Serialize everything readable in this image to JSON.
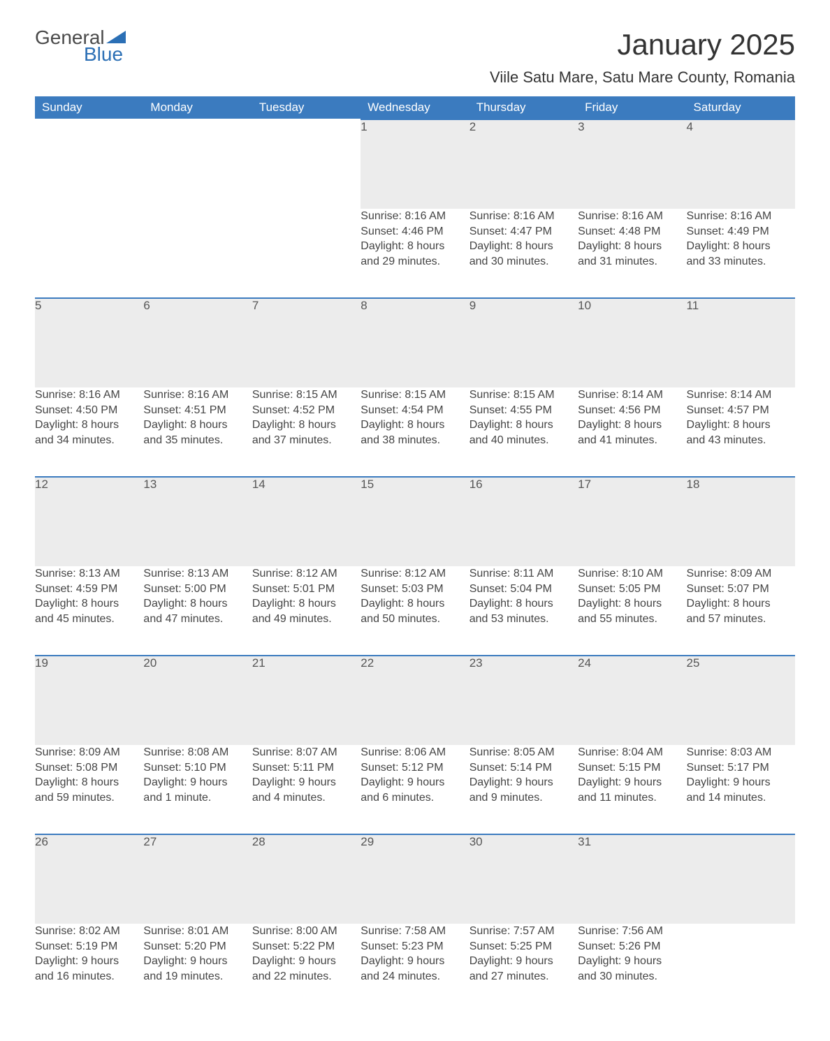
{
  "brand": {
    "word1": "General",
    "word2": "Blue"
  },
  "title": "January 2025",
  "subtitle": "Viile Satu Mare, Satu Mare County, Romania",
  "colors": {
    "header_bg": "#3b7bbf",
    "header_text": "#ffffff",
    "daynum_bg": "#ececec",
    "row_border": "#3b7bbf",
    "body_text": "#444444",
    "brand_blue": "#2b6fb5",
    "brand_gray": "#4a4a4a",
    "page_bg": "#ffffff"
  },
  "typography": {
    "title_fontsize": 42,
    "subtitle_fontsize": 22,
    "header_fontsize": 17,
    "daynum_fontsize": 17,
    "cell_fontsize": 16,
    "logo_fontsize": 28
  },
  "layout": {
    "columns": 7,
    "body_rows": 5
  },
  "headers": [
    "Sunday",
    "Monday",
    "Tuesday",
    "Wednesday",
    "Thursday",
    "Friday",
    "Saturday"
  ],
  "weeks": [
    [
      null,
      null,
      null,
      {
        "day": "1",
        "sunrise": "8:16 AM",
        "sunset": "4:46 PM",
        "daylight1": "8 hours",
        "daylight2": "and 29 minutes."
      },
      {
        "day": "2",
        "sunrise": "8:16 AM",
        "sunset": "4:47 PM",
        "daylight1": "8 hours",
        "daylight2": "and 30 minutes."
      },
      {
        "day": "3",
        "sunrise": "8:16 AM",
        "sunset": "4:48 PM",
        "daylight1": "8 hours",
        "daylight2": "and 31 minutes."
      },
      {
        "day": "4",
        "sunrise": "8:16 AM",
        "sunset": "4:49 PM",
        "daylight1": "8 hours",
        "daylight2": "and 33 minutes."
      }
    ],
    [
      {
        "day": "5",
        "sunrise": "8:16 AM",
        "sunset": "4:50 PM",
        "daylight1": "8 hours",
        "daylight2": "and 34 minutes."
      },
      {
        "day": "6",
        "sunrise": "8:16 AM",
        "sunset": "4:51 PM",
        "daylight1": "8 hours",
        "daylight2": "and 35 minutes."
      },
      {
        "day": "7",
        "sunrise": "8:15 AM",
        "sunset": "4:52 PM",
        "daylight1": "8 hours",
        "daylight2": "and 37 minutes."
      },
      {
        "day": "8",
        "sunrise": "8:15 AM",
        "sunset": "4:54 PM",
        "daylight1": "8 hours",
        "daylight2": "and 38 minutes."
      },
      {
        "day": "9",
        "sunrise": "8:15 AM",
        "sunset": "4:55 PM",
        "daylight1": "8 hours",
        "daylight2": "and 40 minutes."
      },
      {
        "day": "10",
        "sunrise": "8:14 AM",
        "sunset": "4:56 PM",
        "daylight1": "8 hours",
        "daylight2": "and 41 minutes."
      },
      {
        "day": "11",
        "sunrise": "8:14 AM",
        "sunset": "4:57 PM",
        "daylight1": "8 hours",
        "daylight2": "and 43 minutes."
      }
    ],
    [
      {
        "day": "12",
        "sunrise": "8:13 AM",
        "sunset": "4:59 PM",
        "daylight1": "8 hours",
        "daylight2": "and 45 minutes."
      },
      {
        "day": "13",
        "sunrise": "8:13 AM",
        "sunset": "5:00 PM",
        "daylight1": "8 hours",
        "daylight2": "and 47 minutes."
      },
      {
        "day": "14",
        "sunrise": "8:12 AM",
        "sunset": "5:01 PM",
        "daylight1": "8 hours",
        "daylight2": "and 49 minutes."
      },
      {
        "day": "15",
        "sunrise": "8:12 AM",
        "sunset": "5:03 PM",
        "daylight1": "8 hours",
        "daylight2": "and 50 minutes."
      },
      {
        "day": "16",
        "sunrise": "8:11 AM",
        "sunset": "5:04 PM",
        "daylight1": "8 hours",
        "daylight2": "and 53 minutes."
      },
      {
        "day": "17",
        "sunrise": "8:10 AM",
        "sunset": "5:05 PM",
        "daylight1": "8 hours",
        "daylight2": "and 55 minutes."
      },
      {
        "day": "18",
        "sunrise": "8:09 AM",
        "sunset": "5:07 PM",
        "daylight1": "8 hours",
        "daylight2": "and 57 minutes."
      }
    ],
    [
      {
        "day": "19",
        "sunrise": "8:09 AM",
        "sunset": "5:08 PM",
        "daylight1": "8 hours",
        "daylight2": "and 59 minutes."
      },
      {
        "day": "20",
        "sunrise": "8:08 AM",
        "sunset": "5:10 PM",
        "daylight1": "9 hours",
        "daylight2": "and 1 minute."
      },
      {
        "day": "21",
        "sunrise": "8:07 AM",
        "sunset": "5:11 PM",
        "daylight1": "9 hours",
        "daylight2": "and 4 minutes."
      },
      {
        "day": "22",
        "sunrise": "8:06 AM",
        "sunset": "5:12 PM",
        "daylight1": "9 hours",
        "daylight2": "and 6 minutes."
      },
      {
        "day": "23",
        "sunrise": "8:05 AM",
        "sunset": "5:14 PM",
        "daylight1": "9 hours",
        "daylight2": "and 9 minutes."
      },
      {
        "day": "24",
        "sunrise": "8:04 AM",
        "sunset": "5:15 PM",
        "daylight1": "9 hours",
        "daylight2": "and 11 minutes."
      },
      {
        "day": "25",
        "sunrise": "8:03 AM",
        "sunset": "5:17 PM",
        "daylight1": "9 hours",
        "daylight2": "and 14 minutes."
      }
    ],
    [
      {
        "day": "26",
        "sunrise": "8:02 AM",
        "sunset": "5:19 PM",
        "daylight1": "9 hours",
        "daylight2": "and 16 minutes."
      },
      {
        "day": "27",
        "sunrise": "8:01 AM",
        "sunset": "5:20 PM",
        "daylight1": "9 hours",
        "daylight2": "and 19 minutes."
      },
      {
        "day": "28",
        "sunrise": "8:00 AM",
        "sunset": "5:22 PM",
        "daylight1": "9 hours",
        "daylight2": "and 22 minutes."
      },
      {
        "day": "29",
        "sunrise": "7:58 AM",
        "sunset": "5:23 PM",
        "daylight1": "9 hours",
        "daylight2": "and 24 minutes."
      },
      {
        "day": "30",
        "sunrise": "7:57 AM",
        "sunset": "5:25 PM",
        "daylight1": "9 hours",
        "daylight2": "and 27 minutes."
      },
      {
        "day": "31",
        "sunrise": "7:56 AM",
        "sunset": "5:26 PM",
        "daylight1": "9 hours",
        "daylight2": "and 30 minutes."
      },
      null
    ]
  ],
  "labels": {
    "sunrise": "Sunrise: ",
    "sunset": "Sunset: ",
    "daylight": "Daylight: "
  }
}
